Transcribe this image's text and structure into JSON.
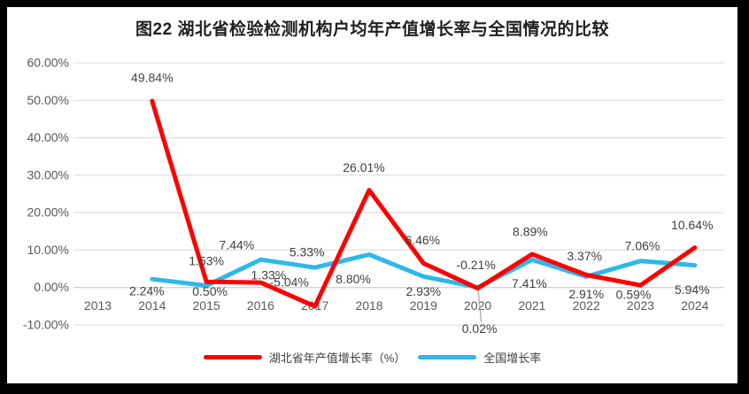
{
  "chart_data": {
    "type": "line",
    "title": "图22 湖北省检验检测机构户均年产值增长率与全国情况的比较",
    "categories": [
      "2013",
      "2014",
      "2015",
      "2016",
      "2017",
      "2018",
      "2019",
      "2020",
      "2021",
      "2022",
      "2023",
      "2024"
    ],
    "series": [
      {
        "name": "湖北省年产值增长率（%）",
        "color": "#FF0000",
        "first_year": "2014",
        "values": [
          49.84,
          1.53,
          1.33,
          -5.04,
          26.01,
          6.46,
          -0.21,
          8.89,
          3.37,
          0.59,
          10.64
        ],
        "labels": [
          "49.84%",
          "1.53%",
          "1.33%",
          "-5.04%",
          "26.01%",
          "6.46%",
          "-0.21%",
          "8.89%",
          "3.37%",
          "0.59%",
          "10.64%"
        ]
      },
      {
        "name": "全国增长率",
        "color": "#2EB8E8",
        "first_year": "2014",
        "values": [
          2.24,
          0.5,
          7.44,
          5.33,
          8.8,
          2.93,
          0.02,
          7.41,
          2.91,
          7.06,
          5.94
        ],
        "labels": [
          "2.24%",
          "0.50%",
          "7.44%",
          "5.33%",
          "8.80%",
          "2.93%",
          "0.02%",
          "7.41%",
          "2.91%",
          "7.06%",
          "5.94%"
        ]
      }
    ],
    "y_axis": {
      "min": -10,
      "max": 60,
      "step": 10,
      "tick_labels": [
        "60.00%",
        "50.00%",
        "40.00%",
        "30.00%",
        "20.00%",
        "10.00%",
        "0.00%",
        "-10.00%"
      ]
    },
    "grid": true,
    "legend_position": "bottom",
    "colors": {
      "gridline": "#d9d9d9",
      "axis_line": "#c6c6c6",
      "tick_text": "#595959",
      "data_label_text": "#404040",
      "leader_line": "#a6a6a6",
      "frame": "#000000",
      "plot_background": "#ffffff"
    }
  }
}
